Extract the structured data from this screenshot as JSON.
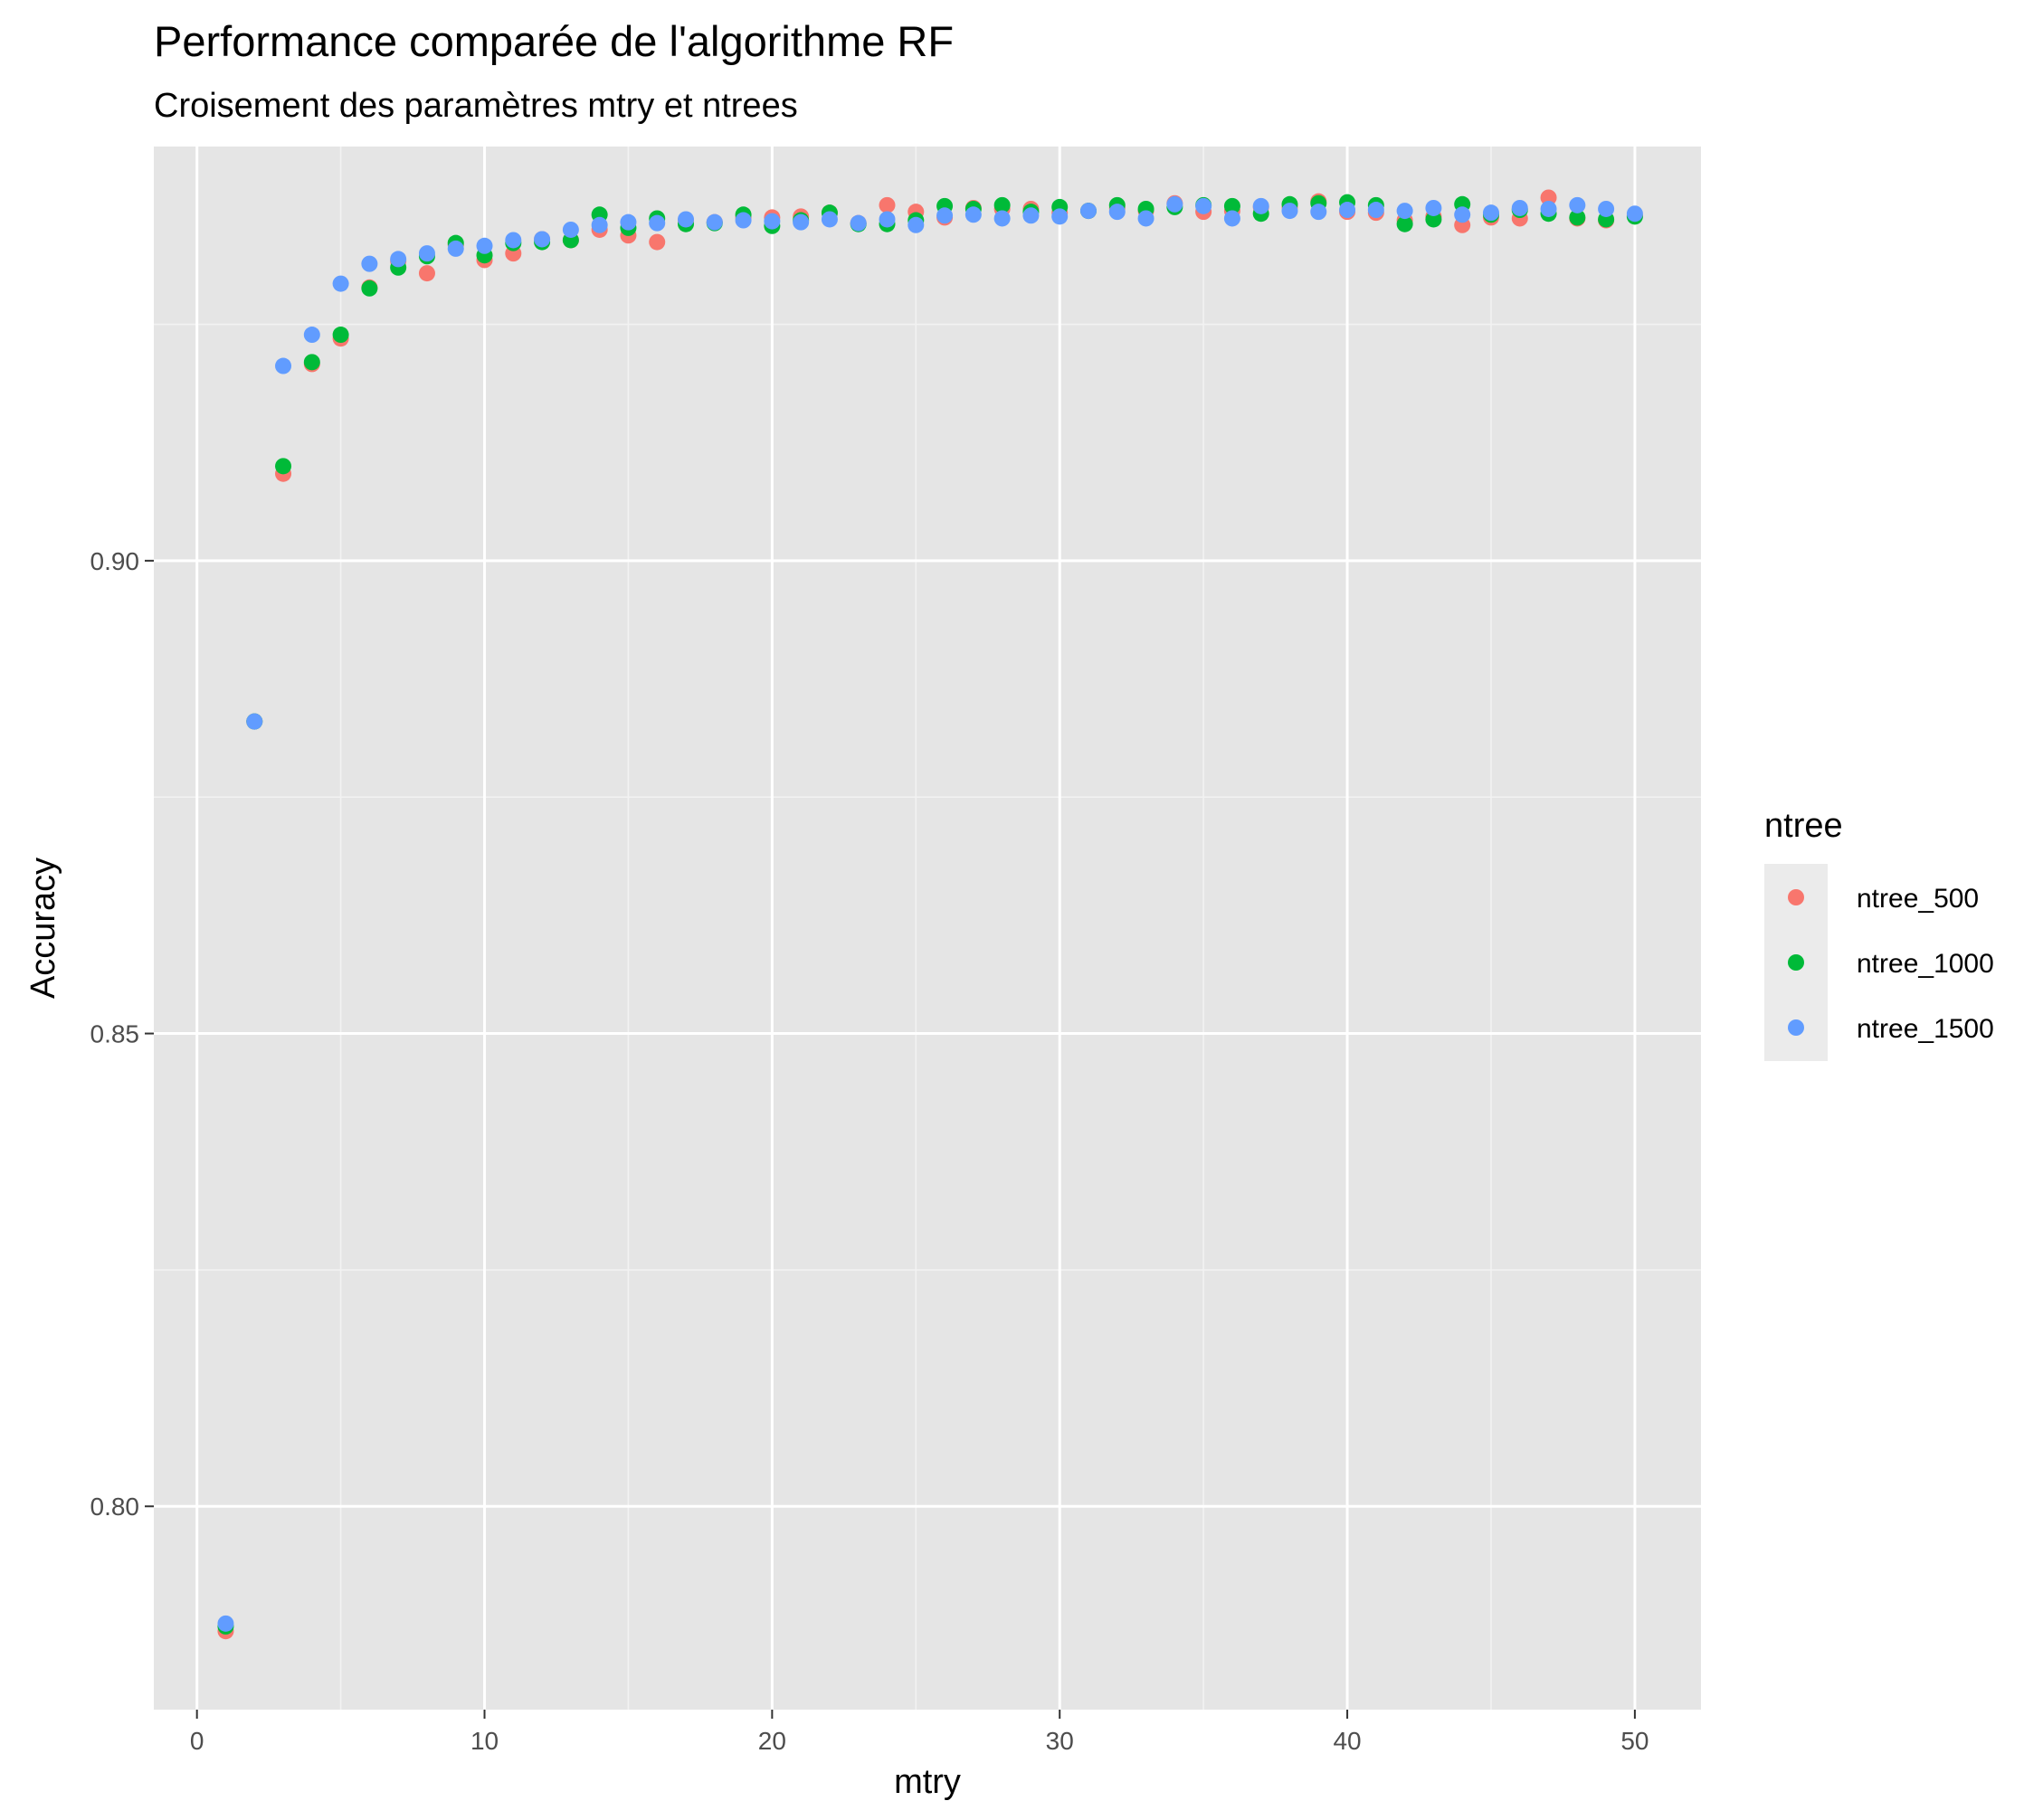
{
  "chart_data": {
    "type": "scatter",
    "title": "Performance comparée de l'algorithme RF",
    "subtitle": "Croisement des paramètres mtry et ntrees",
    "xlabel": "mtry",
    "ylabel": "Accuracy",
    "xlim": [
      -1.5,
      52.3
    ],
    "ylim": [
      0.7785,
      0.9438
    ],
    "x_ticks": [
      0,
      10,
      20,
      30,
      40,
      50
    ],
    "x_tick_labels": [
      "0",
      "10",
      "20",
      "30",
      "40",
      "50"
    ],
    "y_ticks": [
      0.8,
      0.85,
      0.9
    ],
    "y_tick_labels": [
      "0.80",
      "0.85",
      "0.90"
    ],
    "grid": true,
    "background": "#e5e5e5",
    "legend": {
      "title": "ntree",
      "position": "right"
    },
    "x": [
      1,
      2,
      3,
      4,
      5,
      6,
      7,
      8,
      9,
      10,
      11,
      12,
      13,
      14,
      15,
      16,
      17,
      18,
      19,
      20,
      21,
      22,
      23,
      24,
      25,
      26,
      27,
      28,
      29,
      30,
      31,
      32,
      33,
      34,
      35,
      36,
      37,
      38,
      39,
      40,
      41,
      42,
      43,
      44,
      45,
      46,
      47,
      48,
      49,
      50
    ],
    "series": [
      {
        "name": "ntree_500",
        "color": "#f8766d",
        "values": [
          0.7868,
          0.883,
          0.9092,
          0.9208,
          0.9235,
          0.9289,
          0.9317,
          0.9304,
          0.9334,
          0.9318,
          0.9325,
          0.934,
          0.9339,
          0.935,
          0.9344,
          0.9337,
          0.936,
          0.9358,
          0.9363,
          0.9363,
          0.9364,
          0.9368,
          0.9357,
          0.9376,
          0.9369,
          0.9363,
          0.9373,
          0.9372,
          0.9372,
          0.9368,
          0.937,
          0.9373,
          0.937,
          0.9378,
          0.9369,
          0.937,
          0.9374,
          0.9374,
          0.938,
          0.9369,
          0.9368,
          0.936,
          0.9364,
          0.9355,
          0.9363,
          0.9362,
          0.9384,
          0.9362,
          0.936,
          0.9365
        ]
      },
      {
        "name": "ntree_1000",
        "color": "#00ba38",
        "values": [
          0.7873,
          0.883,
          0.91,
          0.921,
          0.9239,
          0.9288,
          0.931,
          0.9322,
          0.9336,
          0.9323,
          0.9336,
          0.9337,
          0.9339,
          0.9366,
          0.9352,
          0.9362,
          0.9356,
          0.9357,
          0.9366,
          0.9354,
          0.936,
          0.9368,
          0.9356,
          0.9356,
          0.936,
          0.9375,
          0.9372,
          0.9376,
          0.9369,
          0.9374,
          0.937,
          0.9376,
          0.9372,
          0.9374,
          0.9376,
          0.9375,
          0.9367,
          0.9377,
          0.9378,
          0.9379,
          0.9376,
          0.9356,
          0.9361,
          0.9377,
          0.9366,
          0.9371,
          0.9367,
          0.9363,
          0.9361,
          0.9364
        ]
      },
      {
        "name": "ntree_1500",
        "color": "#619cff",
        "values": [
          0.7876,
          0.883,
          0.9206,
          0.9239,
          0.9293,
          0.9314,
          0.9319,
          0.9325,
          0.933,
          0.9333,
          0.9339,
          0.934,
          0.935,
          0.9355,
          0.9358,
          0.9357,
          0.9361,
          0.9358,
          0.936,
          0.9359,
          0.9358,
          0.9361,
          0.9357,
          0.9361,
          0.9355,
          0.9365,
          0.9366,
          0.9362,
          0.9365,
          0.9364,
          0.937,
          0.9369,
          0.9362,
          0.9377,
          0.9375,
          0.9362,
          0.9375,
          0.937,
          0.9369,
          0.9371,
          0.9371,
          0.937,
          0.9373,
          0.9366,
          0.9368,
          0.9373,
          0.9372,
          0.9376,
          0.9372,
          0.9367
        ]
      }
    ]
  }
}
